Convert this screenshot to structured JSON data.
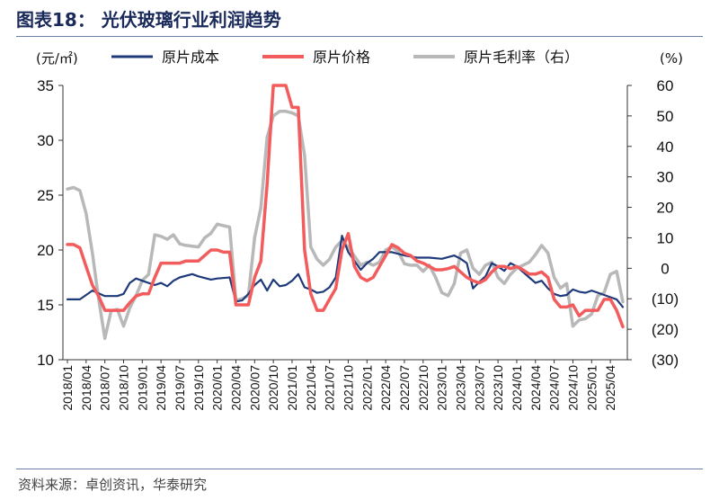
{
  "header": {
    "title": "图表18：  光伏玻璃行业利润趋势"
  },
  "footer": {
    "source": "资料来源：卓创资讯，华泰研究"
  },
  "chart_data": {
    "type": "line",
    "y_left_unit": "(元/㎡)",
    "y_right_unit": "(%)",
    "ylim_left": [
      10,
      35
    ],
    "ylim_right": [
      -30,
      60
    ],
    "yticks_left": [
      "10",
      "15",
      "20",
      "25",
      "30",
      "35"
    ],
    "yticks_right": [
      "(30)",
      "(20)",
      "(10)",
      "0",
      "10",
      "20",
      "30",
      "40",
      "50",
      "60"
    ],
    "x_start": "2018/01",
    "x_end": "2025/06",
    "xtick_labels": [
      "2018/01",
      "2018/04",
      "2018/07",
      "2018/10",
      "2019/01",
      "2019/04",
      "2019/07",
      "2019/10",
      "2020/01",
      "2020/04",
      "2020/07",
      "2020/10",
      "2021/01",
      "2021/04",
      "2021/07",
      "2021/10",
      "2022/01",
      "2022/04",
      "2022/07",
      "2022/10",
      "2023/01",
      "2023/04",
      "2023/07",
      "2023/10",
      "2024/01",
      "2024/04",
      "2024/07",
      "2024/10",
      "2025/01",
      "2025/04"
    ],
    "series": [
      {
        "name": "原片成本",
        "axis": "left",
        "color": "#1f3a7a",
        "points": [
          [
            "2018/01",
            15.5
          ],
          [
            "2018/03",
            15.5
          ],
          [
            "2018/05",
            16.3
          ],
          [
            "2018/07",
            15.8
          ],
          [
            "2018/09",
            15.8
          ],
          [
            "2018/10",
            16.0
          ],
          [
            "2018/11",
            17.0
          ],
          [
            "2018/12",
            17.4
          ],
          [
            "2019/01",
            17.2
          ],
          [
            "2019/03",
            16.8
          ],
          [
            "2019/04",
            17.0
          ],
          [
            "2019/05",
            16.7
          ],
          [
            "2019/06",
            17.2
          ],
          [
            "2019/07",
            17.5
          ],
          [
            "2019/09",
            17.8
          ],
          [
            "2019/10",
            17.6
          ],
          [
            "2019/12",
            17.3
          ],
          [
            "2020/01",
            17.4
          ],
          [
            "2020/03",
            17.5
          ],
          [
            "2020/04",
            15.3
          ],
          [
            "2020/05",
            15.4
          ],
          [
            "2020/06",
            16.0
          ],
          [
            "2020/07",
            16.8
          ],
          [
            "2020/08",
            17.3
          ],
          [
            "2020/09",
            16.3
          ],
          [
            "2020/10",
            17.3
          ],
          [
            "2020/11",
            16.7
          ],
          [
            "2020/12",
            16.8
          ],
          [
            "2021/01",
            17.2
          ],
          [
            "2021/02",
            17.8
          ],
          [
            "2021/03",
            16.6
          ],
          [
            "2021/04",
            16.4
          ],
          [
            "2021/05",
            16.1
          ],
          [
            "2021/06",
            16.2
          ],
          [
            "2021/07",
            16.6
          ],
          [
            "2021/08",
            17.5
          ],
          [
            "2021/09",
            21.3
          ],
          [
            "2021/10",
            19.8
          ],
          [
            "2021/11",
            19.0
          ],
          [
            "2021/12",
            18.2
          ],
          [
            "2022/01",
            18.8
          ],
          [
            "2022/02",
            19.2
          ],
          [
            "2022/03",
            19.8
          ],
          [
            "2022/04",
            19.8
          ],
          [
            "2022/05",
            19.8
          ],
          [
            "2022/07",
            19.5
          ],
          [
            "2022/09",
            19.3
          ],
          [
            "2022/11",
            19.3
          ],
          [
            "2023/01",
            19.2
          ],
          [
            "2023/03",
            19.5
          ],
          [
            "2023/04",
            19.2
          ],
          [
            "2023/05",
            18.8
          ],
          [
            "2023/06",
            16.5
          ],
          [
            "2023/07",
            17.1
          ],
          [
            "2023/08",
            17.6
          ],
          [
            "2023/09",
            18.8
          ],
          [
            "2023/10",
            18.5
          ],
          [
            "2023/11",
            18.1
          ],
          [
            "2023/12",
            18.8
          ],
          [
            "2024/01",
            18.5
          ],
          [
            "2024/02",
            18.0
          ],
          [
            "2024/03",
            17.5
          ],
          [
            "2024/04",
            17.0
          ],
          [
            "2024/05",
            17.2
          ],
          [
            "2024/06",
            16.5
          ],
          [
            "2024/07",
            16.0
          ],
          [
            "2024/08",
            15.8
          ],
          [
            "2024/09",
            15.9
          ],
          [
            "2024/10",
            16.4
          ],
          [
            "2024/11",
            16.2
          ],
          [
            "2024/12",
            16.1
          ],
          [
            "2025/01",
            16.3
          ],
          [
            "2025/03",
            15.9
          ],
          [
            "2025/04",
            15.7
          ],
          [
            "2025/05",
            15.5
          ],
          [
            "2025/06",
            14.8
          ]
        ]
      },
      {
        "name": "原片价格",
        "axis": "left",
        "color": "#f25c5c",
        "points": [
          [
            "2018/01",
            20.5
          ],
          [
            "2018/02",
            20.5
          ],
          [
            "2018/03",
            20.2
          ],
          [
            "2018/04",
            18.5
          ],
          [
            "2018/05",
            16.8
          ],
          [
            "2018/06",
            15.8
          ],
          [
            "2018/07",
            14.5
          ],
          [
            "2018/08",
            14.5
          ],
          [
            "2018/09",
            14.5
          ],
          [
            "2018/10",
            14.5
          ],
          [
            "2018/11",
            15.2
          ],
          [
            "2018/12",
            15.8
          ],
          [
            "2019/01",
            16.0
          ],
          [
            "2019/02",
            16.0
          ],
          [
            "2019/03",
            17.5
          ],
          [
            "2019/04",
            18.8
          ],
          [
            "2019/07",
            18.8
          ],
          [
            "2019/08",
            19.0
          ],
          [
            "2019/10",
            19.0
          ],
          [
            "2019/11",
            19.5
          ],
          [
            "2019/12",
            20.0
          ],
          [
            "2020/01",
            20.0
          ],
          [
            "2020/02",
            19.8
          ],
          [
            "2020/03",
            19.8
          ],
          [
            "2020/04",
            15.0
          ],
          [
            "2020/05",
            15.0
          ],
          [
            "2020/06",
            15.0
          ],
          [
            "2020/07",
            17.5
          ],
          [
            "2020/08",
            19.0
          ],
          [
            "2020/09",
            26.0
          ],
          [
            "2020/10",
            35.0
          ],
          [
            "2020/11",
            35.0
          ],
          [
            "2020/12",
            35.0
          ],
          [
            "2021/01",
            33.0
          ],
          [
            "2021/02",
            33.0
          ],
          [
            "2021/03",
            20.0
          ],
          [
            "2021/04",
            16.0
          ],
          [
            "2021/05",
            14.5
          ],
          [
            "2021/06",
            14.5
          ],
          [
            "2021/07",
            15.5
          ],
          [
            "2021/08",
            16.5
          ],
          [
            "2021/09",
            20.0
          ],
          [
            "2021/10",
            21.5
          ],
          [
            "2021/11",
            18.5
          ],
          [
            "2021/12",
            17.5
          ],
          [
            "2022/01",
            17.2
          ],
          [
            "2022/02",
            17.5
          ],
          [
            "2022/03",
            18.5
          ],
          [
            "2022/04",
            19.5
          ],
          [
            "2022/05",
            20.5
          ],
          [
            "2022/06",
            20.2
          ],
          [
            "2022/07",
            19.7
          ],
          [
            "2022/08",
            19.5
          ],
          [
            "2022/09",
            19.0
          ],
          [
            "2022/10",
            18.8
          ],
          [
            "2022/11",
            18.5
          ],
          [
            "2022/12",
            18.2
          ],
          [
            "2023/01",
            18.2
          ],
          [
            "2023/02",
            18.3
          ],
          [
            "2023/03",
            18.5
          ],
          [
            "2023/04",
            18.0
          ],
          [
            "2023/05",
            17.5
          ],
          [
            "2023/06",
            17.2
          ],
          [
            "2023/07",
            17.0
          ],
          [
            "2023/08",
            17.3
          ],
          [
            "2023/09",
            18.0
          ],
          [
            "2023/10",
            18.5
          ],
          [
            "2023/11",
            18.5
          ],
          [
            "2023/12",
            18.3
          ],
          [
            "2024/01",
            18.5
          ],
          [
            "2024/02",
            18.2
          ],
          [
            "2024/03",
            17.8
          ],
          [
            "2024/04",
            17.8
          ],
          [
            "2024/05",
            18.0
          ],
          [
            "2024/06",
            17.5
          ],
          [
            "2024/07",
            15.5
          ],
          [
            "2024/08",
            14.8
          ],
          [
            "2024/09",
            14.8
          ],
          [
            "2024/10",
            15.0
          ],
          [
            "2024/11",
            14.0
          ],
          [
            "2024/12",
            14.5
          ],
          [
            "2025/01",
            14.5
          ],
          [
            "2025/02",
            14.5
          ],
          [
            "2025/03",
            15.5
          ],
          [
            "2025/04",
            15.5
          ],
          [
            "2025/05",
            14.5
          ],
          [
            "2025/06",
            13.0
          ]
        ]
      },
      {
        "name": "原片毛利率（右）",
        "axis": "right",
        "color": "#b8b8b8",
        "points": [
          [
            "2018/01",
            26.0
          ],
          [
            "2018/02",
            26.5
          ],
          [
            "2018/03",
            25.5
          ],
          [
            "2018/04",
            18.0
          ],
          [
            "2018/05",
            5.0
          ],
          [
            "2018/06",
            -10.0
          ],
          [
            "2018/07",
            -23.0
          ],
          [
            "2018/08",
            -14.0
          ],
          [
            "2018/09",
            -13.5
          ],
          [
            "2018/10",
            -19.0
          ],
          [
            "2018/11",
            -13.0
          ],
          [
            "2018/12",
            -9.0
          ],
          [
            "2019/01",
            -4.0
          ],
          [
            "2019/02",
            -2.0
          ],
          [
            "2019/03",
            11.0
          ],
          [
            "2019/04",
            10.5
          ],
          [
            "2019/05",
            9.5
          ],
          [
            "2019/06",
            11.0
          ],
          [
            "2019/07",
            8.0
          ],
          [
            "2019/08",
            7.5
          ],
          [
            "2019/10",
            7.0
          ],
          [
            "2019/11",
            10.0
          ],
          [
            "2019/12",
            11.5
          ],
          [
            "2020/01",
            14.5
          ],
          [
            "2020/02",
            14.0
          ],
          [
            "2020/03",
            13.5
          ],
          [
            "2020/04",
            -10.5
          ],
          [
            "2020/05",
            -10.0
          ],
          [
            "2020/06",
            -9.0
          ],
          [
            "2020/07",
            10.0
          ],
          [
            "2020/08",
            20.0
          ],
          [
            "2020/09",
            43.0
          ],
          [
            "2020/10",
            50.0
          ],
          [
            "2020/11",
            51.5
          ],
          [
            "2020/12",
            51.5
          ],
          [
            "2021/01",
            51.0
          ],
          [
            "2021/02",
            50.0
          ],
          [
            "2021/03",
            37.0
          ],
          [
            "2021/04",
            7.0
          ],
          [
            "2021/05",
            3.0
          ],
          [
            "2021/06",
            1.0
          ],
          [
            "2021/07",
            3.0
          ],
          [
            "2021/08",
            7.0
          ],
          [
            "2021/09",
            9.0
          ],
          [
            "2021/10",
            7.0
          ],
          [
            "2021/11",
            4.0
          ],
          [
            "2021/12",
            1.0
          ],
          [
            "2022/01",
            2.0
          ],
          [
            "2022/02",
            1.0
          ],
          [
            "2022/03",
            2.0
          ],
          [
            "2022/04",
            6.0
          ],
          [
            "2022/05",
            7.0
          ],
          [
            "2022/06",
            5.5
          ],
          [
            "2022/07",
            1.5
          ],
          [
            "2022/08",
            1.0
          ],
          [
            "2022/09",
            1.0
          ],
          [
            "2022/10",
            -1.0
          ],
          [
            "2022/11",
            1.0
          ],
          [
            "2022/12",
            -3.0
          ],
          [
            "2023/01",
            -8.0
          ],
          [
            "2023/02",
            -9.0
          ],
          [
            "2023/03",
            -5.0
          ],
          [
            "2023/04",
            5.0
          ],
          [
            "2023/05",
            6.0
          ],
          [
            "2023/06",
            0.0
          ],
          [
            "2023/07",
            -2.0
          ],
          [
            "2023/08",
            1.0
          ],
          [
            "2023/09",
            2.0
          ],
          [
            "2023/10",
            -3.0
          ],
          [
            "2023/11",
            -5.0
          ],
          [
            "2023/12",
            -2.0
          ],
          [
            "2024/01",
            0.0
          ],
          [
            "2024/02",
            1.0
          ],
          [
            "2024/03",
            2.0
          ],
          [
            "2024/04",
            4.5
          ],
          [
            "2024/05",
            7.5
          ],
          [
            "2024/06",
            5.0
          ],
          [
            "2024/07",
            -3.0
          ],
          [
            "2024/08",
            -6.5
          ],
          [
            "2024/09",
            -5.0
          ],
          [
            "2024/10",
            -19.0
          ],
          [
            "2024/11",
            -17.0
          ],
          [
            "2024/12",
            -16.5
          ],
          [
            "2025/01",
            -15.0
          ],
          [
            "2025/02",
            -9.0
          ],
          [
            "2025/03",
            -8.0
          ],
          [
            "2025/04",
            -2.0
          ],
          [
            "2025/05",
            -1.0
          ],
          [
            "2025/06",
            -11.0
          ]
        ]
      }
    ]
  }
}
